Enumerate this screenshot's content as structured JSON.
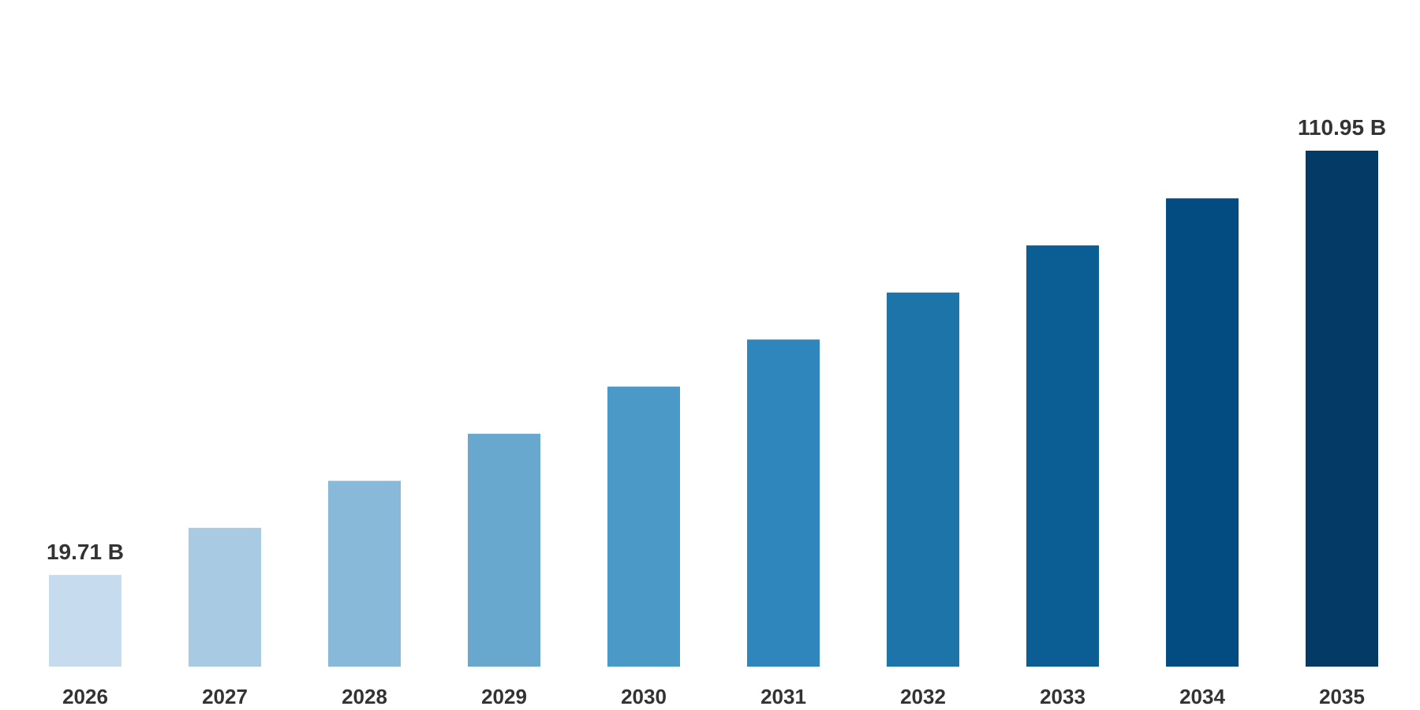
{
  "chart_data": {
    "type": "bar",
    "title": "",
    "xlabel": "",
    "ylabel": "",
    "categories": [
      "2026",
      "2027",
      "2028",
      "2029",
      "2030",
      "2031",
      "2032",
      "2033",
      "2034",
      "2035"
    ],
    "values": [
      19.71,
      29.84,
      39.96,
      50.08,
      60.2,
      70.33,
      80.45,
      90.58,
      100.7,
      110.95
    ],
    "ylim": [
      0,
      120
    ],
    "grid": false,
    "legend": "none",
    "bar_colors": [
      "#c6dbee",
      "#a9cae3",
      "#88b9d9",
      "#68a8ce",
      "#4a99c7",
      "#2e86bd",
      "#1c74a8",
      "#0b5e94",
      "#034c82",
      "#033b66"
    ],
    "text_color": "#333333",
    "data_labels": [
      {
        "category": "2026",
        "text": "19.71 B"
      },
      {
        "category": "2035",
        "text": "110.95 B"
      }
    ]
  }
}
